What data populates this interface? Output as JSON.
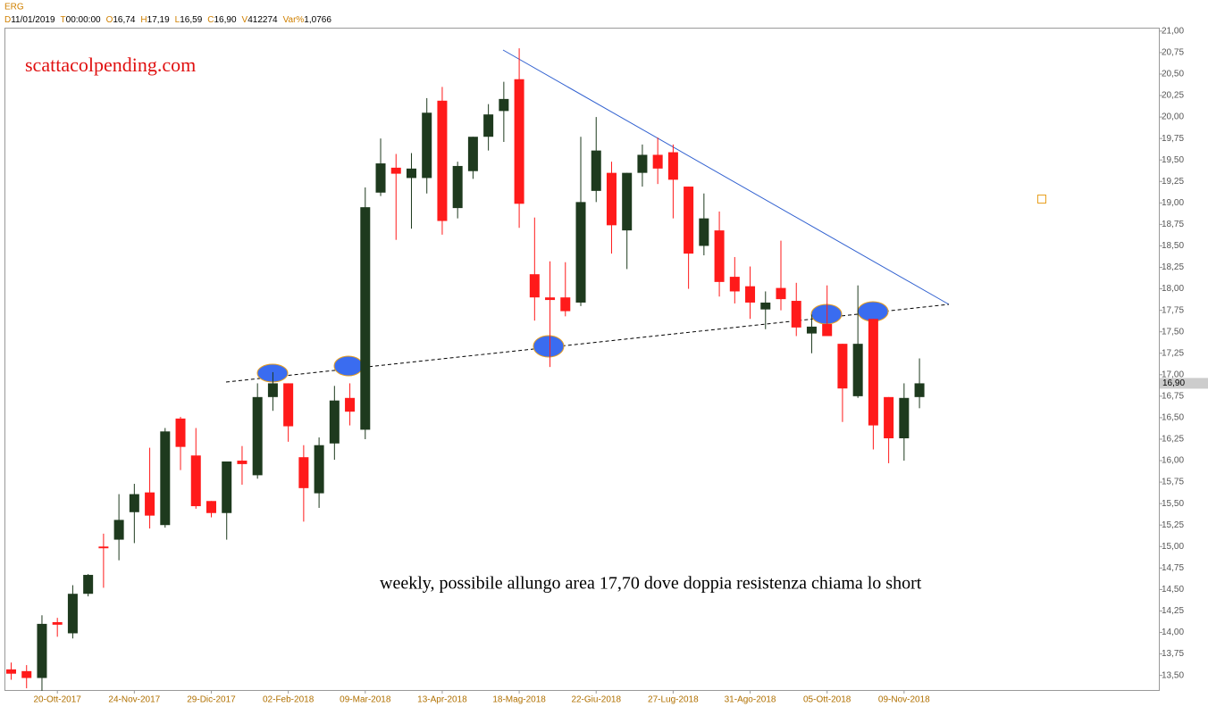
{
  "header": {
    "symbol": "ERG",
    "fields": [
      {
        "key": "D",
        "value": "11/01/2019"
      },
      {
        "key": "T",
        "value": "00:00:00"
      },
      {
        "key": "O",
        "value": "16,74"
      },
      {
        "key": "H",
        "value": "17,19"
      },
      {
        "key": "L",
        "value": "16,59"
      },
      {
        "key": "C",
        "value": "16,90"
      },
      {
        "key": "V",
        "value": "412274"
      },
      {
        "key": "Var%",
        "value": "1,0766"
      }
    ]
  },
  "chart_data": {
    "type": "candlestick",
    "watermark": "scattacolpending.com",
    "annotation": "weekly, possibile allungo area 17,70 dove doppia resistenza chiama lo short",
    "categories": [
      null,
      null,
      null,
      "20-Ott-2017",
      null,
      null,
      null,
      null,
      "24-Nov-2017",
      null,
      null,
      null,
      null,
      "29-Dic-2017",
      null,
      null,
      null,
      null,
      "02-Feb-2018",
      null,
      null,
      null,
      null,
      "09-Mar-2018",
      null,
      null,
      null,
      null,
      "13-Apr-2018",
      null,
      null,
      null,
      null,
      "18-Mag-2018",
      null,
      null,
      null,
      null,
      "22-Giu-2018",
      null,
      null,
      null,
      null,
      "27-Lug-2018",
      null,
      null,
      null,
      null,
      "31-Ago-2018",
      null,
      null,
      null,
      null,
      "05-Ott-2018",
      null,
      null,
      null,
      null,
      "09-Nov-2018",
      null
    ],
    "open": [
      13.57,
      13.55,
      13.47,
      14.12,
      13.99,
      14.45,
      15.0,
      15.08,
      15.4,
      15.63,
      15.25,
      16.49,
      16.06,
      15.53,
      15.39,
      16.0,
      15.83,
      16.74,
      16.9,
      16.04,
      15.62,
      16.2,
      16.73,
      16.36,
      19.12,
      19.41,
      19.29,
      19.29,
      20.19,
      18.94,
      19.37,
      19.77,
      20.07,
      20.44,
      18.17,
      17.9,
      17.9,
      17.84,
      19.14,
      19.35,
      18.68,
      19.35,
      19.56,
      19.59,
      19.19,
      18.5,
      18.68,
      18.14,
      18.03,
      17.76,
      18.01,
      17.86,
      17.48,
      17.59,
      17.36,
      16.75,
      17.65,
      16.74,
      16.26,
      16.74
    ],
    "high": [
      13.65,
      13.62,
      14.2,
      14.17,
      14.55,
      14.68,
      15.15,
      15.61,
      15.73,
      16.15,
      16.38,
      16.51,
      16.38,
      15.53,
      15.99,
      16.17,
      16.9,
      17.03,
      16.9,
      16.18,
      16.27,
      16.87,
      16.9,
      19.18,
      19.75,
      19.57,
      19.58,
      20.22,
      20.35,
      19.48,
      19.77,
      20.15,
      20.41,
      20.8,
      18.83,
      18.32,
      18.31,
      19.77,
      20.0,
      19.48,
      19.35,
      19.68,
      19.76,
      19.68,
      19.19,
      19.11,
      18.9,
      18.37,
      18.26,
      17.97,
      18.56,
      18.07,
      17.7,
      18.04,
      17.36,
      18.04,
      17.65,
      16.74,
      16.9,
      17.19
    ],
    "low": [
      13.45,
      13.35,
      13.32,
      13.95,
      13.93,
      14.42,
      14.52,
      14.84,
      15.04,
      15.21,
      15.22,
      15.89,
      15.44,
      15.34,
      15.08,
      15.72,
      15.79,
      16.58,
      16.22,
      15.29,
      15.45,
      16.01,
      16.41,
      16.25,
      19.08,
      18.57,
      18.7,
      19.11,
      18.63,
      18.82,
      19.28,
      19.61,
      19.71,
      18.71,
      17.63,
      17.09,
      17.68,
      17.8,
      19.01,
      18.41,
      18.23,
      19.19,
      19.22,
      18.82,
      18.0,
      18.39,
      17.91,
      17.83,
      17.65,
      17.53,
      17.75,
      17.45,
      17.25,
      17.45,
      16.45,
      16.73,
      16.13,
      15.97,
      16.0,
      16.61
    ],
    "close": [
      13.52,
      13.47,
      14.1,
      14.09,
      14.45,
      14.67,
      14.98,
      15.31,
      15.61,
      15.36,
      16.34,
      16.16,
      15.47,
      15.39,
      15.99,
      15.96,
      16.74,
      16.9,
      16.4,
      15.68,
      16.18,
      16.7,
      16.57,
      18.95,
      19.46,
      19.34,
      19.4,
      20.05,
      18.79,
      19.43,
      19.77,
      20.03,
      20.21,
      18.99,
      17.9,
      17.87,
      17.74,
      19.01,
      19.61,
      18.74,
      19.35,
      19.56,
      19.4,
      19.27,
      18.41,
      18.82,
      18.08,
      17.97,
      17.84,
      17.84,
      17.88,
      17.55,
      17.56,
      17.45,
      16.84,
      17.36,
      16.41,
      16.26,
      16.73,
      16.9
    ],
    "up_color": "#1e3a1e",
    "down_color": "#ff1a1a",
    "last_price": {
      "value": 16.9,
      "label": "16,90"
    },
    "ylim": [
      13.33,
      21.04
    ],
    "yticks": [
      {
        "value": 13.5,
        "label": "13,50"
      },
      {
        "value": 13.75,
        "label": "13,75"
      },
      {
        "value": 14,
        "label": "14,00"
      },
      {
        "value": 14.25,
        "label": "14,25"
      },
      {
        "value": 14.5,
        "label": "14,50"
      },
      {
        "value": 14.75,
        "label": "14,75"
      },
      {
        "value": 15,
        "label": "15,00"
      },
      {
        "value": 15.25,
        "label": "15,25"
      },
      {
        "value": 15.5,
        "label": "15,50"
      },
      {
        "value": 15.75,
        "label": "15,75"
      },
      {
        "value": 16,
        "label": "16,00"
      },
      {
        "value": 16.25,
        "label": "16,25"
      },
      {
        "value": 16.5,
        "label": "16,50"
      },
      {
        "value": 16.75,
        "label": "16,75"
      },
      {
        "value": 17,
        "label": "17,00"
      },
      {
        "value": 17.25,
        "label": "17,25"
      },
      {
        "value": 17.5,
        "label": "17,50"
      },
      {
        "value": 17.75,
        "label": "17,75"
      },
      {
        "value": 18,
        "label": "18,00"
      },
      {
        "value": 18.25,
        "label": "18,25"
      },
      {
        "value": 18.5,
        "label": "18,50"
      },
      {
        "value": 18.75,
        "label": "18,75"
      },
      {
        "value": 19,
        "label": "19,00"
      },
      {
        "value": 19.25,
        "label": "19,25"
      },
      {
        "value": 19.5,
        "label": "19,50"
      },
      {
        "value": 19.75,
        "label": "19,75"
      },
      {
        "value": 20,
        "label": "20,00"
      },
      {
        "value": 20.25,
        "label": "20,25"
      },
      {
        "value": 20.5,
        "label": "20,50"
      },
      {
        "value": 20.75,
        "label": "20,75"
      },
      {
        "value": 21,
        "label": "21,00"
      }
    ]
  }
}
